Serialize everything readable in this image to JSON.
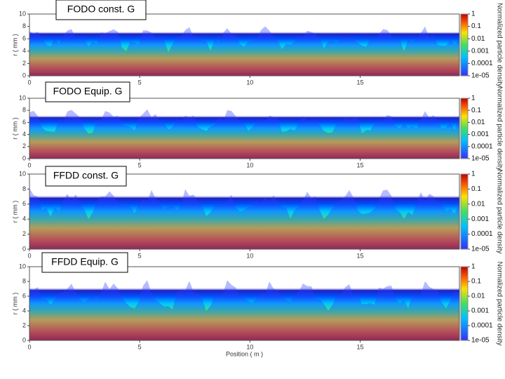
{
  "chart_data": [
    {
      "type": "heatmap",
      "title": "FODO const. G",
      "ylabel": "r ( mm )",
      "xlim": [
        0,
        19.5
      ],
      "ylim": [
        0,
        10
      ],
      "xticks": [
        0,
        5,
        10,
        15
      ],
      "yticks": [
        0,
        2,
        4,
        6,
        8,
        10
      ],
      "colorbar_label": "Normalized particle density",
      "clim": [
        1e-05,
        1
      ],
      "log_scale": true,
      "cticks": [
        1,
        0.1,
        0.01,
        0.001,
        0.0001,
        {
          "value": 1e-05,
          "label": "1e-05"
        }
      ]
    },
    {
      "type": "heatmap",
      "title": "FODO Equip. G",
      "ylabel": "r ( mm )",
      "xlim": [
        0,
        19.5
      ],
      "ylim": [
        0,
        10
      ],
      "xticks": [
        0,
        5,
        10,
        15
      ],
      "yticks": [
        0,
        2,
        4,
        6,
        8,
        10
      ],
      "colorbar_label": "Normalized particle density",
      "clim": [
        1e-05,
        1
      ],
      "log_scale": true,
      "cticks": [
        1,
        0.1,
        0.01,
        0.001,
        0.0001,
        {
          "value": 1e-05,
          "label": "1e-05"
        }
      ]
    },
    {
      "type": "heatmap",
      "title": "FFDD const. G",
      "ylabel": "r ( mm )",
      "xlim": [
        0,
        19.5
      ],
      "ylim": [
        0,
        10
      ],
      "xticks": [
        0,
        5,
        10,
        15
      ],
      "yticks": [
        0,
        2,
        4,
        6,
        8,
        10
      ],
      "colorbar_label": "Normalized particle density",
      "clim": [
        1e-05,
        1
      ],
      "log_scale": true,
      "cticks": [
        1,
        0.1,
        0.01,
        0.001,
        0.0001,
        {
          "value": 1e-05,
          "label": "1e-05"
        }
      ]
    },
    {
      "type": "heatmap",
      "title": "FFDD Equip. G",
      "ylabel": "r ( mm )",
      "xlabel": "Position ( m )",
      "xlim": [
        0,
        19.5
      ],
      "ylim": [
        0,
        10
      ],
      "xticks": [
        0,
        5,
        10,
        15
      ],
      "yticks": [
        0,
        2,
        4,
        6,
        8,
        10
      ],
      "colorbar_label": "Normalized particle density",
      "clim": [
        1e-05,
        1
      ],
      "log_scale": true,
      "cticks": [
        1,
        0.1,
        0.01,
        0.001,
        0.0001,
        {
          "value": 1e-05,
          "label": "1e-05"
        }
      ]
    }
  ]
}
